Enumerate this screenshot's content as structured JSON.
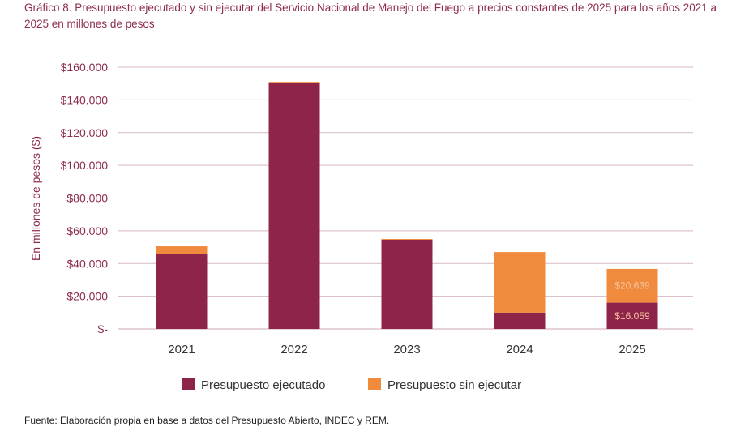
{
  "title": "Gráfico 8. Presupuesto ejecutado y sin ejecutar del Servicio Nacional de Manejo del Fuego a precios constantes de 2025 para los años 2021 a 2025 en millones de pesos",
  "source": "Fuente: Elaboración propia en base a datos del Presupuesto Abierto, INDEC y REM.",
  "chart_data": {
    "type": "bar",
    "stacked": true,
    "categories": [
      "2021",
      "2022",
      "2023",
      "2024",
      "2025"
    ],
    "series": [
      {
        "name": "Presupuesto ejecutado",
        "color": "#8e2449",
        "values": [
          46000,
          150500,
          54500,
          10000,
          16059
        ]
      },
      {
        "name": "Presupuesto sin ejecutar",
        "color": "#f08a3c",
        "values": [
          4500,
          500,
          500,
          37000,
          20639
        ]
      }
    ],
    "data_labels": [
      {
        "category": "2025",
        "series": "Presupuesto ejecutado",
        "text": "$16.059"
      },
      {
        "category": "2025",
        "series": "Presupuesto sin ejecutar",
        "text": "$20.639"
      }
    ],
    "yticks": [
      0,
      20000,
      40000,
      60000,
      80000,
      100000,
      120000,
      140000,
      160000
    ],
    "ytick_labels": [
      "$-",
      "$20.000",
      "$40.000",
      "$60.000",
      "$80.000",
      "$100.000",
      "$120.000",
      "$140.000",
      "$160.000"
    ],
    "ylabel": "En millones de pesos ($)",
    "xlabel": "",
    "ylim": [
      0,
      160000
    ],
    "grid": true,
    "legend_position": "bottom"
  }
}
